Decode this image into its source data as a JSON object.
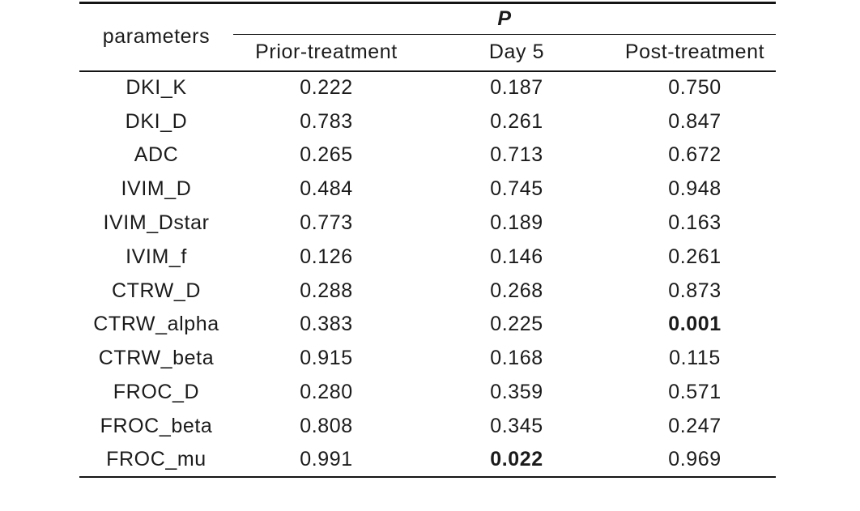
{
  "table": {
    "corner_header": "parameters",
    "group_header": "P",
    "sub_headers": [
      "Prior-treatment",
      "Day 5",
      "Post-treatment"
    ],
    "rows": [
      {
        "parameter": "DKI_K",
        "values": [
          "0.222",
          "0.187",
          "0.750"
        ],
        "bold": [
          false,
          false,
          false
        ]
      },
      {
        "parameter": "DKI_D",
        "values": [
          "0.783",
          "0.261",
          "0.847"
        ],
        "bold": [
          false,
          false,
          false
        ]
      },
      {
        "parameter": "ADC",
        "values": [
          "0.265",
          "0.713",
          "0.672"
        ],
        "bold": [
          false,
          false,
          false
        ]
      },
      {
        "parameter": "IVIM_D",
        "values": [
          "0.484",
          "0.745",
          "0.948"
        ],
        "bold": [
          false,
          false,
          false
        ]
      },
      {
        "parameter": "IVIM_Dstar",
        "values": [
          "0.773",
          "0.189",
          "0.163"
        ],
        "bold": [
          false,
          false,
          false
        ]
      },
      {
        "parameter": "IVIM_f",
        "values": [
          "0.126",
          "0.146",
          "0.261"
        ],
        "bold": [
          false,
          false,
          false
        ]
      },
      {
        "parameter": "CTRW_D",
        "values": [
          "0.288",
          "0.268",
          "0.873"
        ],
        "bold": [
          false,
          false,
          false
        ]
      },
      {
        "parameter": "CTRW_alpha",
        "values": [
          "0.383",
          "0.225",
          "0.001"
        ],
        "bold": [
          false,
          false,
          true
        ]
      },
      {
        "parameter": "CTRW_beta",
        "values": [
          "0.915",
          "0.168",
          "0.115"
        ],
        "bold": [
          false,
          false,
          false
        ]
      },
      {
        "parameter": "FROC_D",
        "values": [
          "0.280",
          "0.359",
          "0.571"
        ],
        "bold": [
          false,
          false,
          false
        ]
      },
      {
        "parameter": "FROC_beta",
        "values": [
          "0.808",
          "0.345",
          "0.247"
        ],
        "bold": [
          false,
          false,
          false
        ]
      },
      {
        "parameter": "FROC_mu",
        "values": [
          "0.991",
          "0.022",
          "0.969"
        ],
        "bold": [
          false,
          true,
          false
        ]
      }
    ]
  },
  "chart_data": {
    "type": "table",
    "title": "P",
    "columns": [
      "parameters",
      "Prior-treatment",
      "Day 5",
      "Post-treatment"
    ],
    "rows": [
      [
        "DKI_K",
        0.222,
        0.187,
        0.75
      ],
      [
        "DKI_D",
        0.783,
        0.261,
        0.847
      ],
      [
        "ADC",
        0.265,
        0.713,
        0.672
      ],
      [
        "IVIM_D",
        0.484,
        0.745,
        0.948
      ],
      [
        "IVIM_Dstar",
        0.773,
        0.189,
        0.163
      ],
      [
        "IVIM_f",
        0.126,
        0.146,
        0.261
      ],
      [
        "CTRW_D",
        0.288,
        0.268,
        0.873
      ],
      [
        "CTRW_alpha",
        0.383,
        0.225,
        0.001
      ],
      [
        "CTRW_beta",
        0.915,
        0.168,
        0.115
      ],
      [
        "FROC_D",
        0.28,
        0.359,
        0.571
      ],
      [
        "FROC_beta",
        0.808,
        0.345,
        0.247
      ],
      [
        "FROC_mu",
        0.991,
        0.022,
        0.969
      ]
    ],
    "bold_cells": [
      {
        "parameter": "CTRW_alpha",
        "column": "Post-treatment",
        "value": 0.001
      },
      {
        "parameter": "FROC_mu",
        "column": "Day 5",
        "value": 0.022
      }
    ]
  },
  "colors": {
    "text": "#1b1b1b",
    "rule": "#141414",
    "background": "#ffffff"
  }
}
